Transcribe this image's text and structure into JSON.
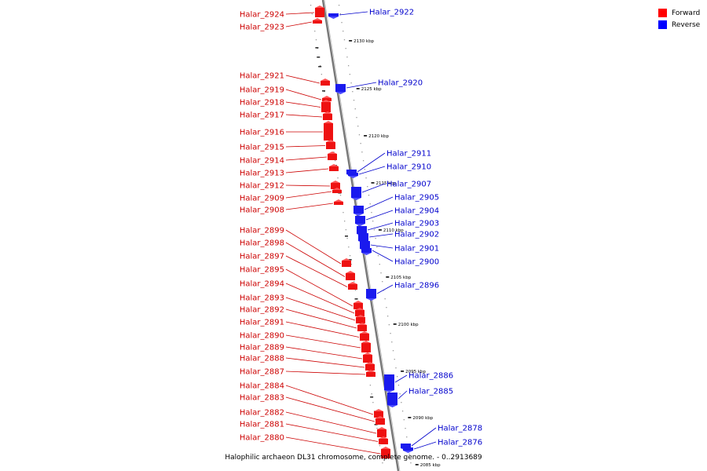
{
  "caption": "Halophilic archaeon DL31 chromosome, complete genome. - 0..2913689",
  "legend": [
    {
      "label": "Forward",
      "color": "#ff0000"
    },
    {
      "label": "Reverse",
      "color": "#0000ff"
    }
  ],
  "colors": {
    "forward": "#ee1111",
    "forward_label": "#cc0000",
    "reverse": "#1a1aee",
    "reverse_label": "#0000cc",
    "backbone": "#888888"
  },
  "ticks": [
    "2130 kbp",
    "2125 kbp",
    "2120 kbp",
    "2115 kbp",
    "2110 kbp",
    "2105 kbp",
    "2100 kbp",
    "2095 kbp",
    "2090 kbp",
    "2085 kbp"
  ],
  "forward_genes": [
    "Halar_2924",
    "Halar_2923",
    "Halar_2921",
    "Halar_2919",
    "Halar_2918",
    "Halar_2917",
    "Halar_2916",
    "Halar_2915",
    "Halar_2914",
    "Halar_2913",
    "Halar_2912",
    "Halar_2909",
    "Halar_2908",
    "Halar_2899",
    "Halar_2898",
    "Halar_2897",
    "Halar_2895",
    "Halar_2894",
    "Halar_2893",
    "Halar_2892",
    "Halar_2891",
    "Halar_2890",
    "Halar_2889",
    "Halar_2888",
    "Halar_2887",
    "Halar_2884",
    "Halar_2883",
    "Halar_2882",
    "Halar_2881",
    "Halar_2880"
  ],
  "reverse_genes": [
    "Halar_2922",
    "Halar_2920",
    "Halar_2911",
    "Halar_2910",
    "Halar_2907",
    "Halar_2905",
    "Halar_2904",
    "Halar_2903",
    "Halar_2902",
    "Halar_2901",
    "Halar_2900",
    "Halar_2896",
    "Halar_2886",
    "Halar_2885",
    "Halar_2878",
    "Halar_2876"
  ]
}
